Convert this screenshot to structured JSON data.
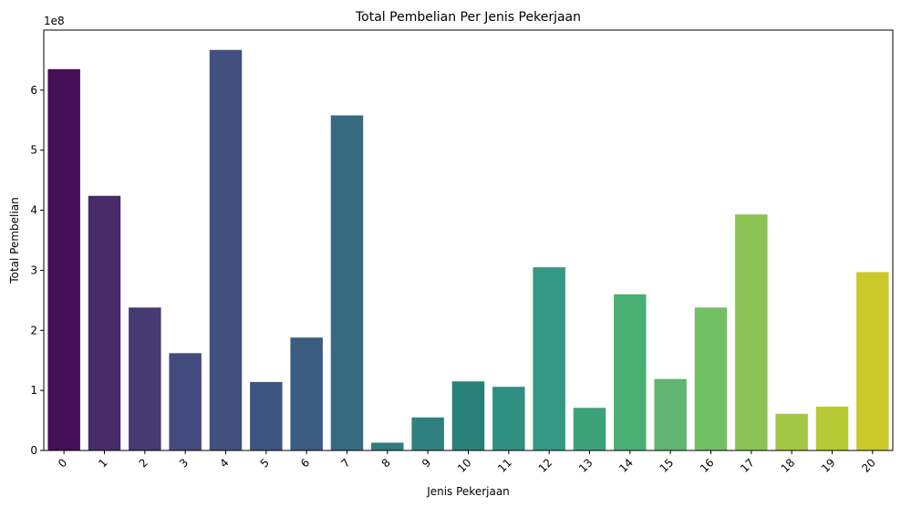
{
  "chart_data": {
    "type": "bar",
    "title": "Total Pembelian Per Jenis Pekerjaan",
    "xlabel": "Jenis Pekerjaan",
    "ylabel": "Total Pembelian",
    "y_multiplier_label": "1e8",
    "categories": [
      "0",
      "1",
      "2",
      "3",
      "4",
      "5",
      "6",
      "7",
      "8",
      "9",
      "10",
      "11",
      "12",
      "13",
      "14",
      "15",
      "16",
      "17",
      "18",
      "19",
      "20"
    ],
    "values": [
      635000000,
      424000000,
      238000000,
      162000000,
      667000000,
      114000000,
      188000000,
      558000000,
      13000000,
      55000000,
      115000000,
      106000000,
      305000000,
      71000000,
      260000000,
      119000000,
      238000000,
      393000000,
      61000000,
      73000000,
      297000000
    ],
    "colors": [
      "#440f56",
      "#472c69",
      "#453a72",
      "#434a7e",
      "#424f7f",
      "#3d5581",
      "#3b5b80",
      "#366a81",
      "#2e7c7e",
      "#2e817e",
      "#288078",
      "#2f8f80",
      "#339985",
      "#3da27a",
      "#4aaf72",
      "#5fb56f",
      "#72c064",
      "#8bc455",
      "#a2c646",
      "#b6ca34",
      "#cac92c"
    ],
    "yticks": [
      0,
      100000000,
      200000000,
      300000000,
      400000000,
      500000000,
      600000000
    ],
    "ytick_labels": [
      "0",
      "1",
      "2",
      "3",
      "4",
      "5",
      "6"
    ],
    "ylim": [
      0,
      700000000
    ],
    "grid": false,
    "xtick_rotation": -45
  }
}
